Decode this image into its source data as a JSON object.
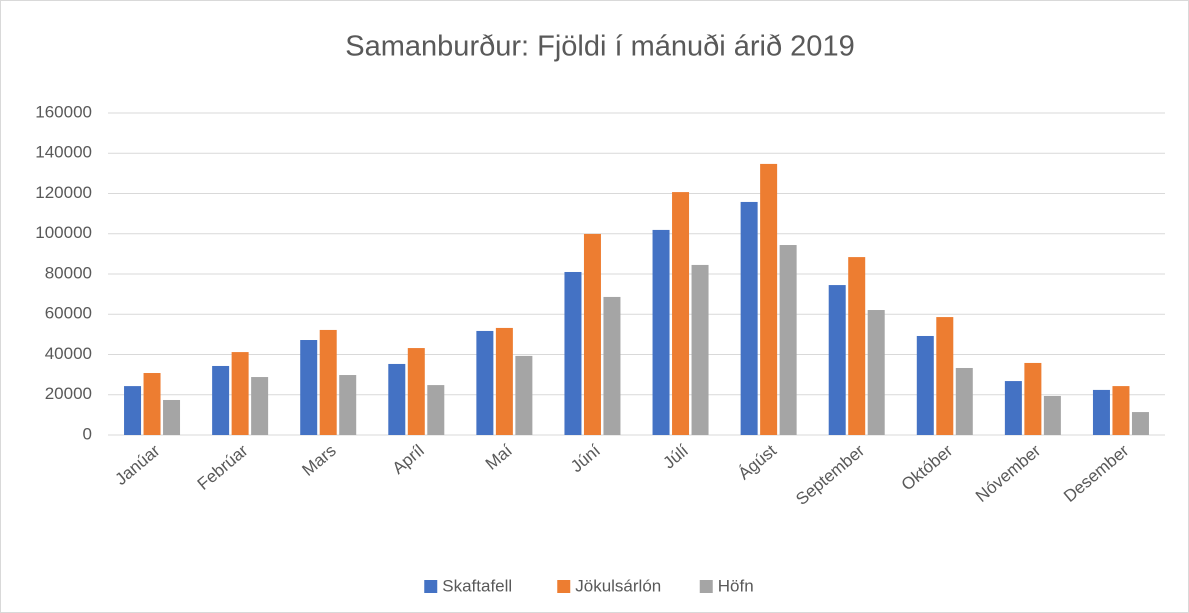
{
  "chart_data": {
    "type": "bar",
    "title": "Samanburður: Fjöldi í mánuði árið 2019",
    "categories": [
      "Janúar",
      "Febrúar",
      "Mars",
      "Apríl",
      "Maí",
      "Júní",
      "Júlí",
      "Ágúst",
      "September",
      "Október",
      "Nóvember",
      "Desember"
    ],
    "series": [
      {
        "name": "Skaftafell",
        "color": "#4472c4",
        "values": [
          24300,
          34300,
          47200,
          35300,
          51700,
          81000,
          101900,
          115800,
          74500,
          49200,
          26800,
          22400
        ]
      },
      {
        "name": "Jökulsárlón",
        "color": "#ed7d31",
        "values": [
          30800,
          41200,
          52200,
          43200,
          53200,
          99900,
          120700,
          134700,
          88400,
          58600,
          35800,
          24300
        ]
      },
      {
        "name": "Höfn",
        "color": "#a5a5a5",
        "values": [
          17400,
          28800,
          29800,
          24800,
          39300,
          68600,
          84500,
          94400,
          62100,
          33300,
          19400,
          11400
        ]
      }
    ],
    "ylim": [
      0,
      160000
    ],
    "yticks": [
      0,
      20000,
      40000,
      60000,
      80000,
      100000,
      120000,
      140000,
      160000
    ],
    "grid": true,
    "legend": "bottom"
  }
}
